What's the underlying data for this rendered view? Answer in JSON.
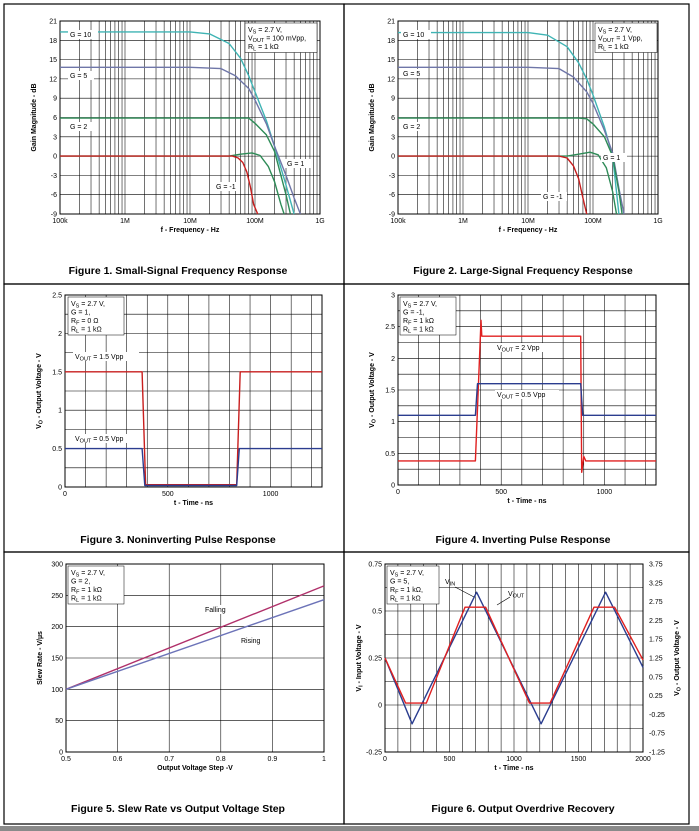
{
  "figures": [
    {
      "caption": "Figure 1. Small-Signal Frequency Response"
    },
    {
      "caption": "Figure 2. Large-Signal Frequency Response"
    },
    {
      "caption": "Figure 3. Noninverting Pulse Response"
    },
    {
      "caption": "Figure 4. Inverting Pulse Response"
    },
    {
      "caption": "Figure 5. Slew Rate vs Output Voltage Step"
    },
    {
      "caption": "Figure 6. Output Overdrive Recovery"
    }
  ],
  "colors": {
    "teal": "#3fb4b4",
    "slate": "#6f76a8",
    "green": "#2e8b57",
    "red": "#c81e1e",
    "navy": "#2b3d8f",
    "rise": "#6c73b8",
    "fall": "#b0306a",
    "bright_red": "#e02020"
  },
  "chart_data": [
    {
      "type": "line",
      "title": "Figure 1. Small-Signal Frequency Response",
      "xlabel": "f - Frequency - Hz",
      "ylabel": "Gain Magnitude - dB",
      "xscale": "log",
      "xlim": [
        100000,
        1000000000
      ],
      "ylim": [
        -9,
        21
      ],
      "xticks": [
        "100k",
        "1M",
        "10M",
        "100M",
        "1G"
      ],
      "yticks": [
        "21",
        "18",
        "15",
        "12",
        "9",
        "6",
        "3",
        "0",
        "-3",
        "-6",
        "-9"
      ],
      "grid": true,
      "annotation": [
        "V_S = 2.7 V,",
        "V_OUT = 100 mVpp,",
        "R_L = 1 kΩ"
      ],
      "series": [
        {
          "name": "G = 10",
          "color": "teal",
          "x": [
            100000,
            10000000,
            20000000,
            40000000,
            60000000,
            80000000,
            100000000,
            150000000,
            200000000,
            300000000,
            400000000
          ],
          "y": [
            19.3,
            19.3,
            19.0,
            17.5,
            15.2,
            12.5,
            10.0,
            5.5,
            1.5,
            -4.5,
            -9
          ]
        },
        {
          "name": "G = 5",
          "color": "slate",
          "x": [
            100000,
            10000000,
            30000000,
            50000000,
            80000000,
            100000000,
            150000000,
            200000000,
            300000000,
            400000000,
            500000000
          ],
          "y": [
            13.8,
            13.8,
            13.6,
            12.5,
            10.5,
            8.7,
            5.0,
            1.5,
            -3.0,
            -6.5,
            -9
          ]
        },
        {
          "name": "G = 2",
          "color": "green",
          "x": [
            100000,
            30000000,
            60000000,
            80000000,
            100000000,
            150000000,
            200000000,
            300000000,
            350000000
          ],
          "y": [
            5.9,
            5.9,
            5.9,
            5.9,
            5.1,
            3.3,
            0.7,
            -6.0,
            -9
          ]
        },
        {
          "name": "G = 1",
          "color": "green",
          "x": [
            100000,
            40000000,
            60000000,
            90000000,
            120000000,
            160000000,
            200000000,
            250000000,
            280000000
          ],
          "y": [
            0,
            0,
            0.3,
            0.5,
            0.1,
            -1.6,
            -4.0,
            -7.5,
            -9
          ]
        },
        {
          "name": "G = -1",
          "color": "red",
          "x": [
            100000,
            30000000,
            45000000,
            55000000,
            65000000,
            75000000,
            85000000,
            95000000,
            110000000
          ],
          "y": [
            0,
            0,
            0,
            -0.3,
            -1.0,
            -2.5,
            -4.8,
            -7.5,
            -9
          ]
        }
      ]
    },
    {
      "type": "line",
      "title": "Figure 2. Large-Signal Frequency Response",
      "xlabel": "f - Frequency - Hz",
      "ylabel": "Gain Magnitude - dB",
      "xscale": "log",
      "xlim": [
        100000,
        1000000000
      ],
      "ylim": [
        -9,
        21
      ],
      "xticks": [
        "100k",
        "1M",
        "10M",
        "100M",
        "1G"
      ],
      "yticks": [
        "21",
        "18",
        "15",
        "12",
        "9",
        "6",
        "3",
        "0",
        "-3",
        "-6",
        "-9"
      ],
      "grid": true,
      "annotation": [
        "V_S = 2.7 V,",
        "V_OUT = 1 Vpp,",
        "R_L = 1 kΩ"
      ],
      "series": [
        {
          "name": "G = 10",
          "color": "teal",
          "x": [
            100000,
            10000000,
            20000000,
            40000000,
            60000000,
            80000000,
            100000000,
            150000000,
            200000000,
            250000000
          ],
          "y": [
            19.2,
            19.2,
            18.8,
            17.0,
            14.5,
            12.0,
            9.5,
            4.5,
            0.0,
            -9
          ]
        },
        {
          "name": "G = 5",
          "color": "slate",
          "x": [
            100000,
            10000000,
            30000000,
            50000000,
            80000000,
            100000000,
            150000000,
            200000000,
            250000000,
            300000000
          ],
          "y": [
            13.8,
            13.8,
            13.6,
            12.3,
            10.0,
            8.2,
            4.0,
            0.5,
            -5.0,
            -9
          ]
        },
        {
          "name": "G = 2",
          "color": "green",
          "x": [
            100000,
            30000000,
            60000000,
            80000000,
            100000000,
            150000000,
            200000000,
            250000000,
            280000000
          ],
          "y": [
            5.9,
            5.9,
            5.9,
            5.8,
            5.0,
            3.0,
            0.0,
            -5.5,
            -9
          ]
        },
        {
          "name": "G = 1",
          "color": "green",
          "x": [
            100000,
            40000000,
            60000000,
            90000000,
            120000000,
            160000000,
            200000000,
            230000000
          ],
          "y": [
            0,
            0,
            0.3,
            0.6,
            0.2,
            -1.8,
            -5.5,
            -9
          ]
        },
        {
          "name": "G = -1",
          "color": "red",
          "x": [
            100000,
            20000000,
            30000000,
            40000000,
            50000000,
            60000000,
            70000000,
            80000000
          ],
          "y": [
            0,
            0,
            0,
            -0.3,
            -1.5,
            -3.5,
            -6.5,
            -9
          ]
        }
      ]
    },
    {
      "type": "line",
      "title": "Figure 3. Noninverting Pulse Response",
      "xlabel": "t - Time - ns",
      "ylabel": "V_O - Output Voltage - V",
      "xlim": [
        0,
        1250
      ],
      "ylim": [
        0,
        2.5
      ],
      "xticks": [
        "0",
        "500",
        "1000"
      ],
      "yticks": [
        "0",
        "0.5",
        "1",
        "1.5",
        "2",
        "2.5"
      ],
      "grid": true,
      "annotation": [
        "V_S = 2.7 V,",
        "G = 1,",
        "R_F = 0 Ω",
        "R_L = 1 kΩ"
      ],
      "series": [
        {
          "name": "V_OUT = 1.5 Vpp",
          "color": "red",
          "x": [
            0,
            375,
            392,
            835,
            852,
            1250
          ],
          "y": [
            1.5,
            1.5,
            0.03,
            0.03,
            1.5,
            1.5
          ]
        },
        {
          "name": "V_OUT = 0.5 Vpp",
          "color": "navy",
          "x": [
            0,
            375,
            388,
            835,
            848,
            1250
          ],
          "y": [
            0.5,
            0.5,
            0.02,
            0.02,
            0.5,
            0.5
          ]
        }
      ]
    },
    {
      "type": "line",
      "title": "Figure 4. Inverting Pulse Response",
      "xlabel": "t - Time - ns",
      "ylabel": "V_O - Output Voltage - V",
      "xlim": [
        0,
        1250
      ],
      "ylim": [
        0,
        3
      ],
      "xticks": [
        "0",
        "500",
        "1000"
      ],
      "yticks": [
        "0",
        "0.5",
        "1",
        "1.5",
        "2",
        "2.5",
        "3"
      ],
      "grid": true,
      "annotation": [
        "V_S = 2.7 V,",
        "G = -1,",
        "R_F = 1 kΩ",
        "R_L = 1 kΩ"
      ],
      "series": [
        {
          "name": "V_OUT = 2 Vpp",
          "color": "bright_red",
          "x": [
            0,
            375,
            402,
            406,
            412,
            885,
            890,
            900,
            910,
            1250
          ],
          "y": [
            0.38,
            0.38,
            2.6,
            2.35,
            2.35,
            2.35,
            0.2,
            0.45,
            0.38,
            0.38
          ]
        },
        {
          "name": "V_OUT = 0.5 Vpp",
          "color": "navy",
          "x": [
            0,
            375,
            385,
            885,
            895,
            1250
          ],
          "y": [
            1.1,
            1.1,
            1.6,
            1.6,
            1.1,
            1.1
          ]
        }
      ]
    },
    {
      "type": "line",
      "title": "Figure 5. Slew Rate vs Output Voltage Step",
      "xlabel": "Output Voltage Step -V",
      "ylabel": "Slew Rate - V/µs",
      "xlim": [
        0.5,
        1
      ],
      "ylim": [
        0,
        300
      ],
      "xticks": [
        "0.5",
        "0.6",
        "0.7",
        "0.8",
        "0.9",
        "1"
      ],
      "yticks": [
        "0",
        "50",
        "100",
        "150",
        "200",
        "250",
        "300"
      ],
      "grid": true,
      "annotation": [
        "V_S = 2.7 V,",
        "G = 2,",
        "R_F = 1 kΩ",
        "R_L = 1 kΩ"
      ],
      "series": [
        {
          "name": "Falling",
          "color": "fall",
          "x": [
            0.5,
            1
          ],
          "y": [
            100,
            265
          ]
        },
        {
          "name": "Rising",
          "color": "rise",
          "x": [
            0.5,
            1
          ],
          "y": [
            100,
            243
          ]
        }
      ]
    },
    {
      "type": "line",
      "title": "Figure 6. Output Overdrive Recovery",
      "xlabel": "t - Time - ns",
      "ylabel": "V_I - Input Voltage - V",
      "y2label": "V_O - Output Voltage - V",
      "xlim": [
        0,
        2000
      ],
      "ylim": [
        -0.25,
        0.75
      ],
      "y2lim": [
        -1.25,
        3.75
      ],
      "xticks": [
        "0",
        "500",
        "1000",
        "1500",
        "2000"
      ],
      "yticks": [
        "-0.25",
        "0",
        "0.25",
        "0.5",
        "0.75"
      ],
      "y2ticks": [
        "3.75",
        "3.25",
        "2.75",
        "2.25",
        "1.75",
        "1.25",
        "0.75",
        "0.25",
        "-0.25",
        "-0.75",
        "-1.25"
      ],
      "grid": true,
      "annotation": [
        "V_S = 2.7 V,",
        "G = 5,",
        "R_F = 1 kΩ,",
        "R_L = 1 kΩ"
      ],
      "series": [
        {
          "name": "V_IN",
          "color": "navy",
          "axis": "left",
          "x": [
            0,
            210,
            710,
            1210,
            1710,
            2000
          ],
          "y": [
            0.25,
            -0.1,
            0.6,
            -0.1,
            0.6,
            0.2
          ]
        },
        {
          "name": "V_OUT",
          "color": "bright_red",
          "axis": "right",
          "x": [
            0,
            160,
            320,
            620,
            780,
            1120,
            1280,
            1620,
            1780,
            2000
          ],
          "y": [
            1.25,
            0.05,
            0.05,
            2.6,
            2.6,
            0.05,
            0.05,
            2.6,
            2.6,
            1.2
          ]
        }
      ]
    }
  ],
  "labels": {
    "fig1": {
      "g10": "G = 10",
      "g5": "G = 5",
      "g2": "G = 2",
      "g1": "G = 1",
      "gm1": "G = -1"
    },
    "fig2": {
      "g10": "G = 10",
      "g5": "G = 5",
      "g2": "G = 2",
      "g1": "G = 1",
      "gm1": "G = -1"
    },
    "fig3": {
      "big": "V_OUT = 1.5 Vpp",
      "small": "V_OUT = 0.5 Vpp"
    },
    "fig4": {
      "big": "V_OUT = 2 Vpp",
      "small": "V_OUT = 0.5 Vpp"
    },
    "fig5": {
      "fall": "Falling",
      "rise": "Rising"
    },
    "fig6": {
      "vin": "V_IN",
      "vout": "V_OUT"
    }
  }
}
